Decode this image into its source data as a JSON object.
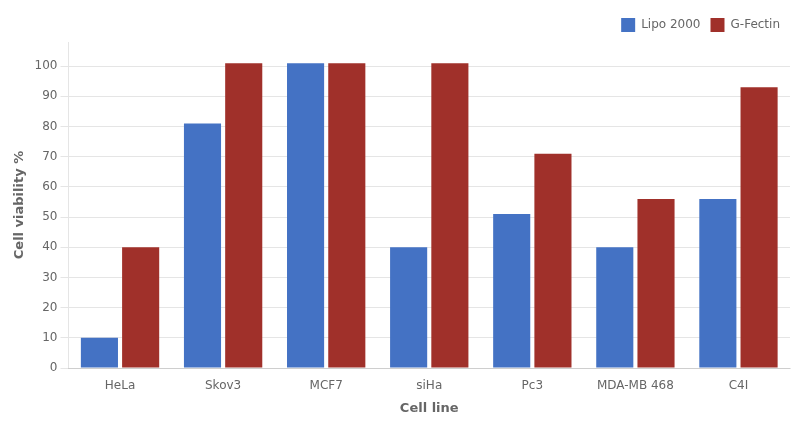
{
  "chart_data": {
    "type": "bar",
    "xlabel": "Cell line",
    "ylabel": "Cell viability %",
    "categories": [
      "HeLa",
      "Skov3",
      "MCF7",
      "siHa",
      "Pc3",
      "MDA-MB 468",
      "C4I"
    ],
    "series": [
      {
        "name": "Lipo 2000",
        "color": "#4472C4",
        "values": [
          10,
          81,
          101,
          40,
          51,
          40,
          56
        ]
      },
      {
        "name": "G-Fectin",
        "color": "#A0302A",
        "values": [
          40,
          101,
          101,
          101,
          71,
          56,
          93
        ]
      }
    ],
    "ylim": [
      0,
      108
    ],
    "yticks": [
      0,
      10,
      20,
      30,
      40,
      50,
      60,
      70,
      80,
      90,
      100
    ],
    "grid": true,
    "legend": "upper right"
  }
}
